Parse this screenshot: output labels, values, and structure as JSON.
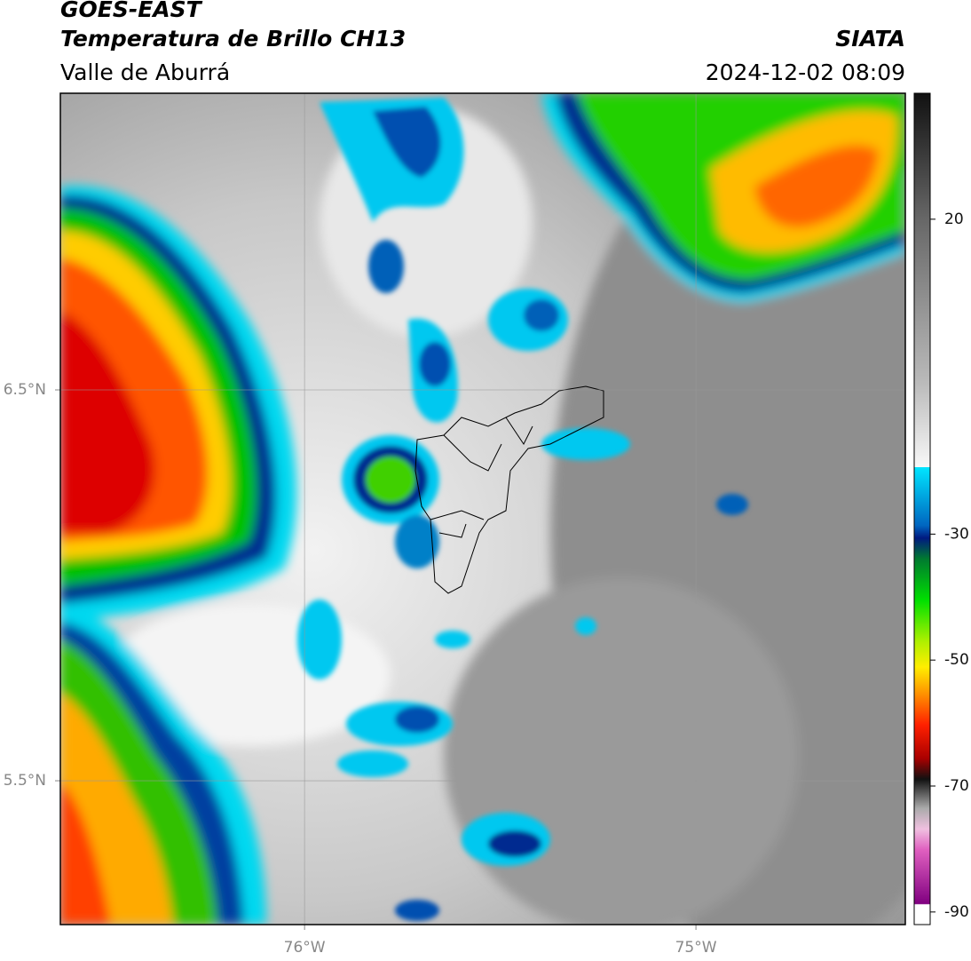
{
  "header": {
    "title": "GOES-EAST",
    "subtitle": "Temperatura de Brillo CH13",
    "region": "Valle de Aburrá",
    "source": "SIATA",
    "datetime": "2024-12-02 08:09"
  },
  "map": {
    "lonlim": [
      -76.624,
      -74.465
    ],
    "latlim": [
      5.132,
      7.259
    ],
    "lonticks": [
      {
        "value": -76,
        "label": "76°W"
      },
      {
        "value": -75,
        "label": "75°W"
      }
    ],
    "latticks": [
      {
        "value": 6.5,
        "label": "6.5°N"
      },
      {
        "value": 5.5,
        "label": "5.5°N"
      }
    ],
    "grid": true
  },
  "colorbar": {
    "lim": [
      -92,
      40
    ],
    "ticks": [
      20,
      -30,
      -50,
      -70,
      -90
    ]
  }
}
